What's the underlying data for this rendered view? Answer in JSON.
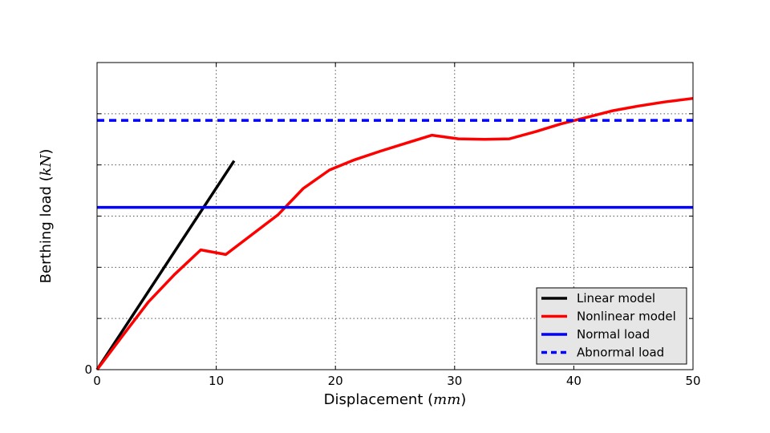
{
  "chart_data": {
    "type": "line",
    "xlabel": {
      "text": "Displacement (",
      "unit": "mm",
      "close": ")"
    },
    "ylabel": {
      "text": "Berthing load (",
      "unit": "kN",
      "close": ")"
    },
    "xlim": [
      0,
      50
    ],
    "ylim": [
      0,
      6
    ],
    "xticks": [
      0,
      10,
      20,
      30,
      40,
      50
    ],
    "yticks": [
      0,
      1,
      2,
      3,
      4,
      5,
      6
    ],
    "ytick_labels": [
      "0",
      "",
      "",
      "",
      "",
      "",
      ""
    ],
    "grid": true,
    "legend_position": "lower-right",
    "series": [
      {
        "name": "Linear model",
        "color": "#000000",
        "style": "solid",
        "x": [
          0,
          11.5
        ],
        "y": [
          0,
          4.08
        ]
      },
      {
        "name": "Nonlinear model",
        "color": "#ff0000",
        "style": "solid",
        "x": [
          0,
          2.2,
          4.3,
          6.5,
          8.7,
          10.8,
          13,
          15.2,
          17.3,
          19.5,
          21.6,
          23.8,
          26,
          28.1,
          30.3,
          32.5,
          34.6,
          36.8,
          38.9,
          41.1,
          43.3,
          45.4,
          47.6,
          50
        ],
        "y": [
          0,
          0.68,
          1.32,
          1.86,
          2.34,
          2.25,
          2.64,
          3.03,
          3.54,
          3.9,
          4.1,
          4.27,
          4.43,
          4.58,
          4.51,
          4.5,
          4.51,
          4.65,
          4.8,
          4.93,
          5.06,
          5.15,
          5.23,
          5.3
        ]
      },
      {
        "name": "Normal load",
        "color": "#0000ff",
        "style": "solid",
        "x": [
          0,
          50
        ],
        "y": [
          3.17,
          3.17
        ]
      },
      {
        "name": "Abnormal load",
        "color": "#0000ff",
        "style": "dashed",
        "x": [
          0,
          50
        ],
        "y": [
          4.87,
          4.87
        ]
      }
    ]
  }
}
